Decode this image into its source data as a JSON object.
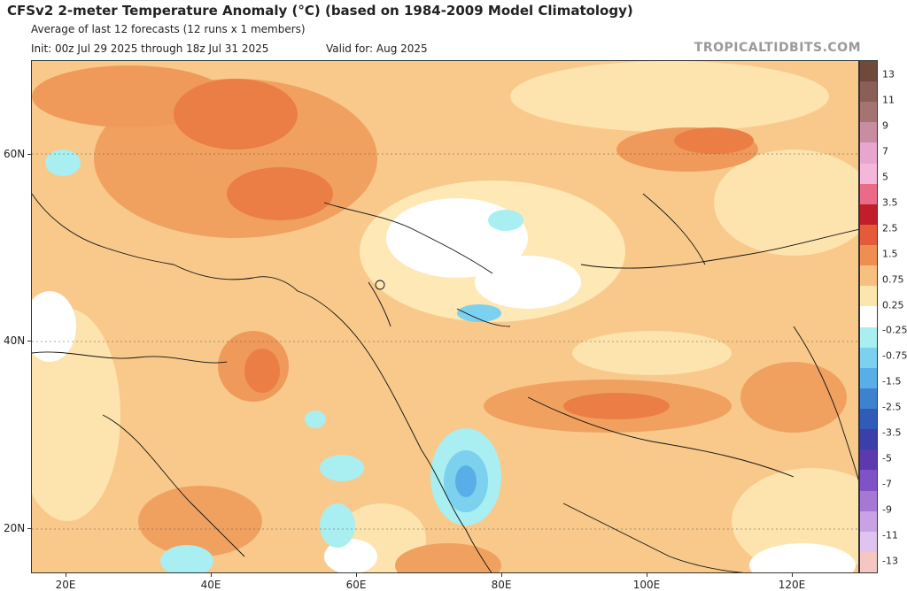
{
  "header": {
    "title": "CFSv2 2-meter Temperature Anomaly (°C) (based on 1984-2009 Model Climatology)",
    "subtitle": "Average of last 12 forecasts (12 runs x 1 members)",
    "init": "Init: 00z Jul 29 2025 through 18z Jul 31 2025",
    "valid": "Valid for: Aug 2025",
    "brand": "TROPICALTIDBITS.COM"
  },
  "map": {
    "region": "Central & South Asia / Middle East / Eastern Europe",
    "lat_labels": [
      "60N",
      "40N",
      "20N"
    ],
    "lon_labels": [
      "20E",
      "40E",
      "60E",
      "80E",
      "100E",
      "120E"
    ]
  },
  "colorbar": {
    "labels": [
      "13",
      "11",
      "9",
      "7",
      "5",
      "3.5",
      "2.5",
      "1.5",
      "0.75",
      "0.25",
      "-0.25",
      "-0.75",
      "-1.5",
      "-2.5",
      "-3.5",
      "-5",
      "-7",
      "-9",
      "-11",
      "-13"
    ],
    "colors": [
      "#6f4a3a",
      "#8b5e57",
      "#a57472",
      "#c88da0",
      "#e8a6cf",
      "#f4b7da",
      "#ea6a88",
      "#c21d2a",
      "#e55a38",
      "#f08e52",
      "#f6c07e",
      "#fbe6ad",
      "#ffffff",
      "#a9eef0",
      "#7bd1ee",
      "#5aaee8",
      "#3e82cf",
      "#2e5cb8",
      "#3b3fa8",
      "#5a3aae",
      "#7f52c6",
      "#a578d6",
      "#c7a3e6",
      "#e0c3ee",
      "#f6c7c2"
    ]
  }
}
